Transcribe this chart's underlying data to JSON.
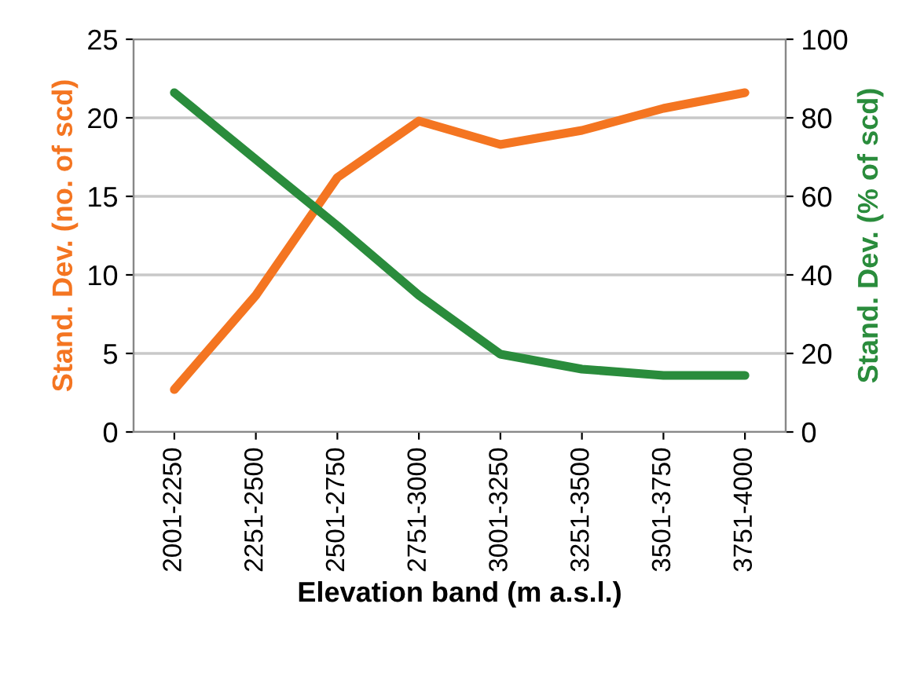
{
  "chart_data": {
    "type": "line",
    "xlabel": "Elevation band (m a.s.l.)",
    "ylabel": "Stand. Dev. (no. of scd)",
    "y2label": "Stand. Dev. (% of scd)",
    "categories": [
      "2001-2250",
      "2251-2500",
      "2501-2750",
      "2751-3000",
      "3001-3250",
      "3251-3500",
      "3501-3750",
      "3751-4000"
    ],
    "series": [
      {
        "color": "#f47521",
        "values": [
          2.7,
          8.7,
          16.2,
          19.8,
          18.3,
          19.2,
          20.6,
          21.6
        ]
      },
      {
        "color": "#2a8c3c",
        "axis": "y2",
        "values": [
          86.4,
          69.4,
          52.5,
          34.8,
          19.8,
          16,
          14.4,
          14.4
        ]
      }
    ],
    "ylim": [
      0,
      25
    ],
    "yticks": [
      0,
      5,
      10,
      15,
      20,
      25
    ],
    "y2lim": [
      0,
      100
    ],
    "y2ticks": [
      0,
      20,
      40,
      60,
      80,
      100
    ],
    "grid": "y",
    "legend": false,
    "marker": "none",
    "line_style": "solid"
  }
}
